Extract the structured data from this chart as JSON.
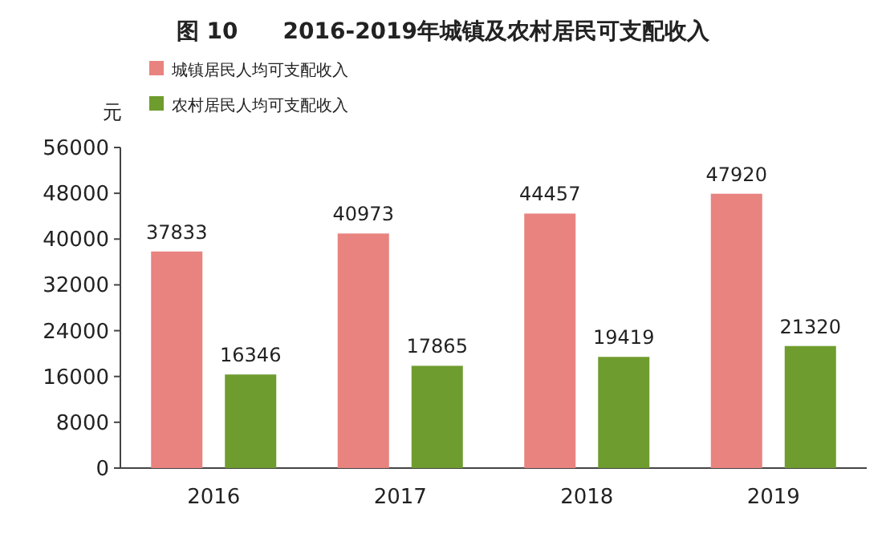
{
  "chart_data": {
    "type": "bar",
    "title": "图 10　　2016-2019年城镇及农村居民可支配收入",
    "ylabel": "元",
    "categories": [
      "2016",
      "2017",
      "2018",
      "2019"
    ],
    "series": [
      {
        "name": "城镇居民人均可支配收入",
        "color": "#e8837f",
        "values": [
          37833,
          40973,
          44457,
          47920
        ]
      },
      {
        "name": "农村居民人均可支配收入",
        "color": "#6f9c2e",
        "values": [
          16346,
          17865,
          19419,
          21320
        ]
      }
    ],
    "ylim": [
      0,
      56000
    ],
    "yticks": [
      0,
      8000,
      16000,
      24000,
      32000,
      40000,
      48000,
      56000
    ],
    "data_labels": true,
    "legend": "top left",
    "grid": false
  }
}
